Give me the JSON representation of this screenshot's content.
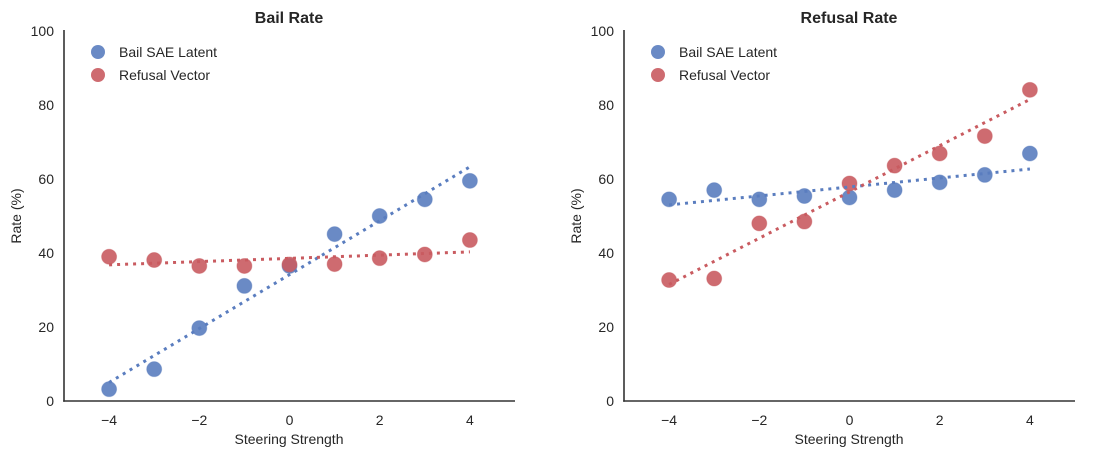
{
  "chart_data": [
    {
      "type": "scatter",
      "title": "Bail Rate",
      "xlabel": "Steering Strength",
      "ylabel": "Rate (%)",
      "xlim": [
        -5,
        5
      ],
      "ylim": [
        0,
        100
      ],
      "xticks": [
        "−4",
        "−2",
        "0",
        "2",
        "4"
      ],
      "xtick_values": [
        -4,
        -2,
        0,
        2,
        4
      ],
      "yticks": [
        "0",
        "20",
        "40",
        "60",
        "80",
        "100"
      ],
      "ytick_values": [
        0,
        20,
        40,
        60,
        80,
        100
      ],
      "grid": false,
      "legend_position": "top-left",
      "x": [
        -4,
        -3,
        -2,
        -1,
        0,
        1,
        2,
        3,
        4
      ],
      "series": [
        {
          "name": "Bail SAE Latent",
          "color": "#5a7dbf",
          "values": [
            3.2,
            8.6,
            19.7,
            31.1,
            36.5,
            45.1,
            50.0,
            54.5,
            59.5
          ],
          "trendline": {
            "style": "dotted",
            "start": [
              -4,
              5.0
            ],
            "end": [
              4,
              63.3
            ]
          }
        },
        {
          "name": "Refusal Vector",
          "color": "#c95b60",
          "values": [
            39.0,
            38.1,
            36.5,
            36.5,
            36.9,
            37.0,
            38.6,
            39.6,
            43.5
          ],
          "trendline": {
            "style": "dotted",
            "start": [
              -4,
              36.8
            ],
            "end": [
              4,
              40.3
            ]
          }
        }
      ]
    },
    {
      "type": "scatter",
      "title": "Refusal Rate",
      "xlabel": "Steering Strength",
      "ylabel": "Rate (%)",
      "xlim": [
        -5,
        5
      ],
      "ylim": [
        0,
        100
      ],
      "xticks": [
        "−4",
        "−2",
        "0",
        "2",
        "4"
      ],
      "xtick_values": [
        -4,
        -2,
        0,
        2,
        4
      ],
      "yticks": [
        "0",
        "20",
        "40",
        "60",
        "80",
        "100"
      ],
      "ytick_values": [
        0,
        20,
        40,
        60,
        80,
        100
      ],
      "grid": false,
      "legend_position": "top-left",
      "x": [
        -4,
        -3,
        -2,
        -1,
        0,
        1,
        2,
        3,
        4
      ],
      "series": [
        {
          "name": "Bail SAE Latent",
          "color": "#5a7dbf",
          "values": [
            54.5,
            57.0,
            54.5,
            55.4,
            55.0,
            57.0,
            59.1,
            61.1,
            66.9
          ],
          "trendline": {
            "style": "dotted",
            "start": [
              -4,
              53.0
            ],
            "end": [
              4,
              62.7
            ]
          }
        },
        {
          "name": "Refusal Vector",
          "color": "#c95b60",
          "values": [
            32.7,
            33.1,
            48.0,
            48.5,
            58.8,
            63.6,
            66.9,
            71.6,
            84.1
          ],
          "trendline": {
            "style": "dotted",
            "start": [
              -4,
              31.5
            ],
            "end": [
              4,
              81.5
            ]
          }
        }
      ]
    }
  ]
}
